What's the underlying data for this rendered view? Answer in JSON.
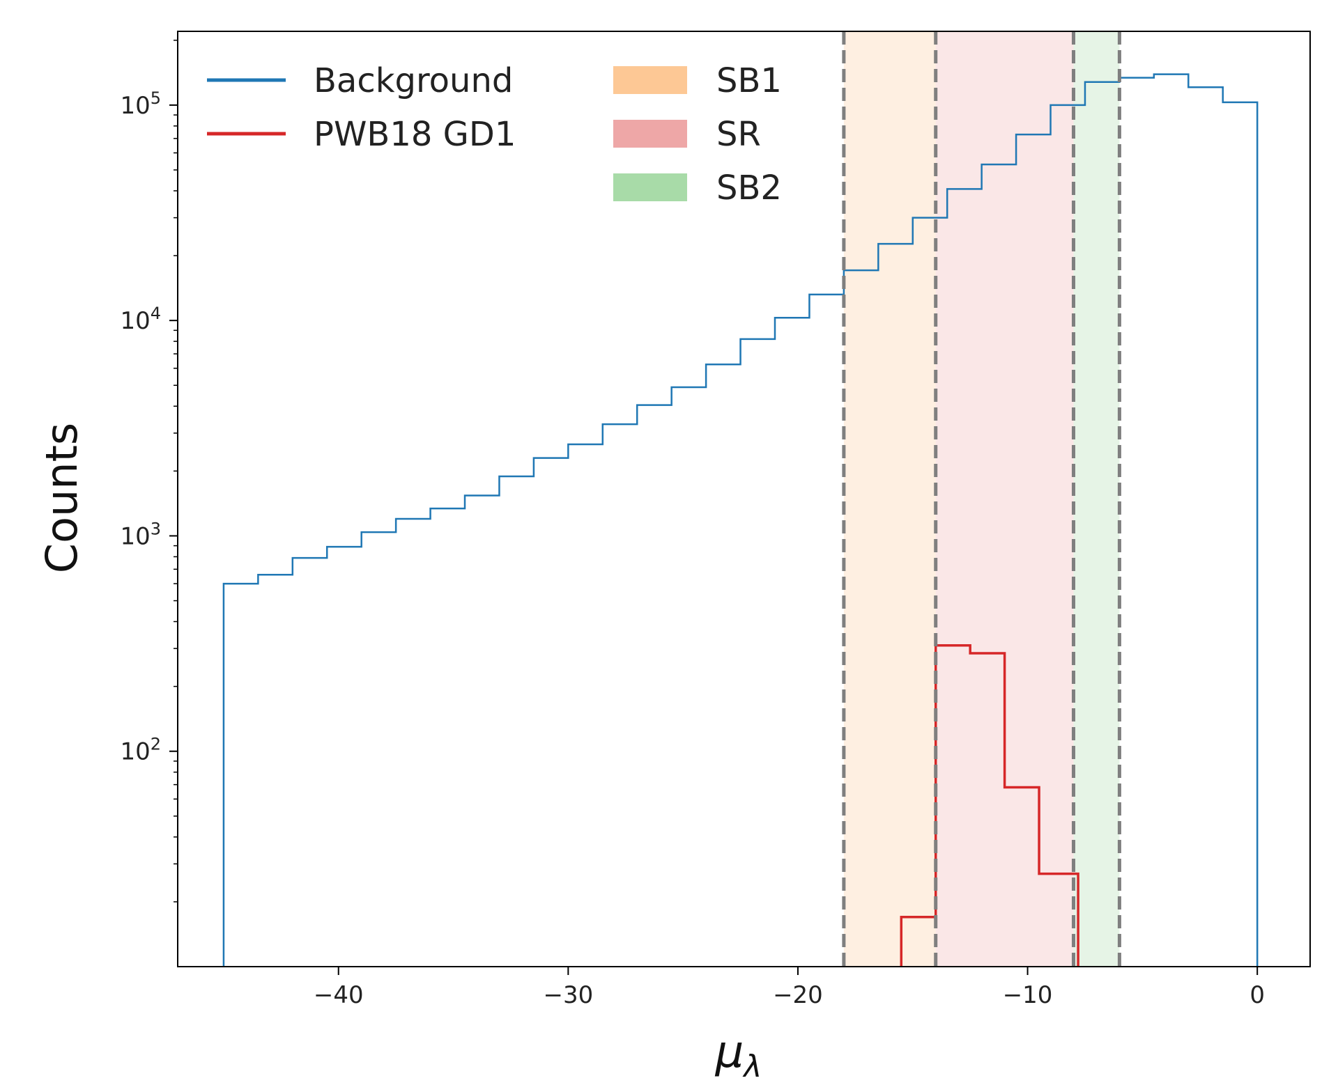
{
  "chart_data": {
    "type": "histogram",
    "xlabel": "μλ",
    "ylabel": "Counts",
    "xlim": [
      -47,
      2.3
    ],
    "ylim": [
      10,
      220000
    ],
    "yscale": "log",
    "grid": false,
    "legend_placement": "top-left",
    "xticks": [
      -40,
      -30,
      -20,
      -10,
      0
    ],
    "xtick_labels": [
      "−40",
      "−30",
      "−20",
      "−10",
      "0"
    ],
    "yticks": [
      100,
      1000,
      10000,
      100000
    ],
    "ytick_labels": [
      {
        "base": "10",
        "exp": "2"
      },
      {
        "base": "10",
        "exp": "3"
      },
      {
        "base": "10",
        "exp": "4"
      },
      {
        "base": "10",
        "exp": "5"
      }
    ],
    "regions": [
      {
        "name": "SB1",
        "from": -18,
        "to": -14,
        "color": "#fdbf86",
        "opacity": 0.25
      },
      {
        "name": "SR",
        "from": -14,
        "to": -8,
        "color": "#e89090",
        "opacity": 0.22
      },
      {
        "name": "SB2",
        "from": -8,
        "to": -6,
        "color": "#8fcc8f",
        "opacity": 0.22
      }
    ],
    "legend_swatch_colors": [
      "#fdc895",
      "#eea7a7",
      "#a8dba8"
    ],
    "boundaries": [
      -18,
      -14,
      -8,
      -6
    ],
    "series": [
      {
        "name": "Background",
        "color": "#1f77b4",
        "edges": [
          -45,
          -43.5,
          -42,
          -40.5,
          -39,
          -37.5,
          -36,
          -34.5,
          -33,
          -31.5,
          -30,
          -28.5,
          -27,
          -25.5,
          -24,
          -22.5,
          -21,
          -19.5,
          -18,
          -16.5,
          -15,
          -13.5,
          -12,
          -10.5,
          -9,
          -7.5,
          -6,
          -4.5,
          -3,
          -1.5,
          0
        ],
        "values": [
          600,
          660,
          790,
          890,
          1040,
          1200,
          1340,
          1540,
          1890,
          2300,
          2660,
          3300,
          4050,
          4900,
          6250,
          8200,
          10300,
          13200,
          17100,
          22700,
          30000,
          40800,
          53000,
          73000,
          100000,
          128000,
          134000,
          139000,
          121000,
          103000
        ]
      },
      {
        "name": "PWB18 GD1",
        "color": "#d62728",
        "edges": [
          -15.5,
          -14,
          -12.5,
          -11,
          -9.5,
          -7.8
        ],
        "values": [
          17,
          310,
          285,
          68,
          27
        ]
      }
    ]
  }
}
